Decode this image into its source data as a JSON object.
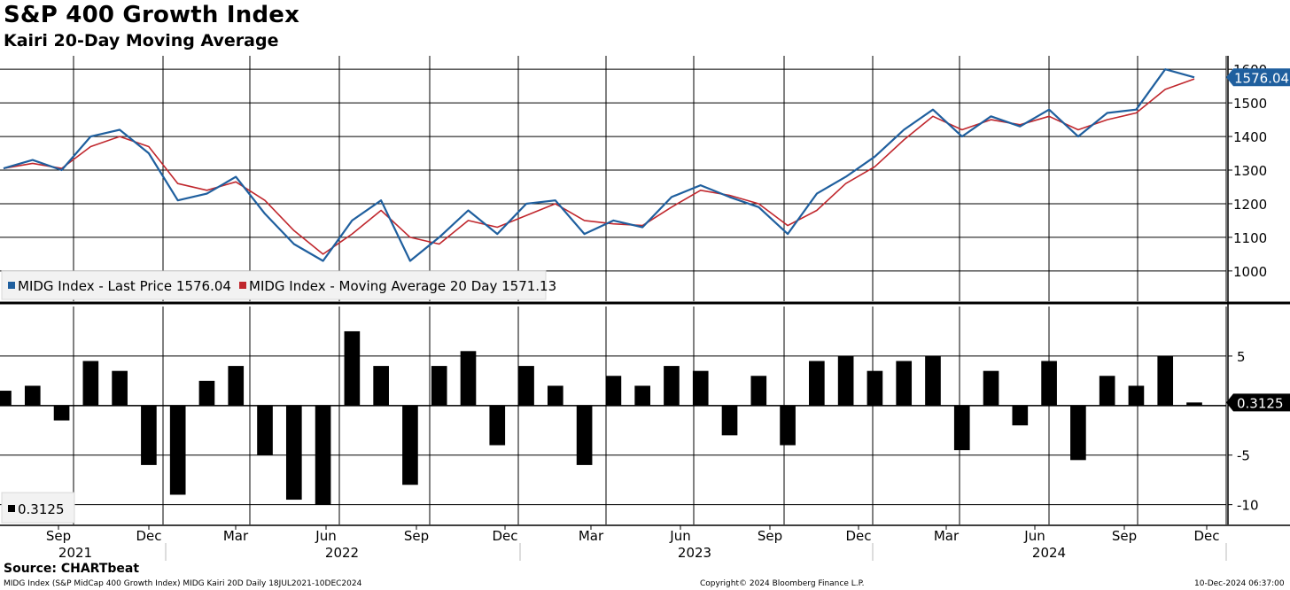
{
  "header": {
    "title": "S&P 400 Growth Index",
    "subtitle": "Kairi 20-Day Moving Average"
  },
  "footer": {
    "source": "Source: CHARTbeat",
    "description": "MIDG Index (S&P MidCap 400 Growth Index) MIDG Kairi 20D  Daily 18JUL2021-10DEC2024",
    "copyright": "Copyright© 2024 Bloomberg Finance L.P.",
    "timestamp": "10-Dec-2024 06:37:00"
  },
  "colors": {
    "price": "#1f5f9e",
    "moving_average": "#c0272d",
    "kairi": "#000000",
    "last_tag_background": "#1f5f9e"
  },
  "chart_data": [
    {
      "type": "line",
      "ylim": [
        910,
        1640
      ],
      "yticks": [
        1000,
        1100,
        1200,
        1300,
        1400,
        1500,
        1600
      ],
      "grid": true,
      "legend": "bottom-left",
      "last_value_label": "1576.04",
      "x": [
        "Jul 2021",
        "Aug 2021",
        "Sep 2021",
        "Oct 2021",
        "Nov 2021",
        "Dec 2021",
        "Jan 2022",
        "Feb 2022",
        "Mar 2022",
        "Apr 2022",
        "May 2022",
        "Jun 2022",
        "Jul 2022",
        "Aug 2022",
        "Sep 2022",
        "Oct 2022",
        "Nov 2022",
        "Dec 2022",
        "Jan 2023",
        "Feb 2023",
        "Mar 2023",
        "Apr 2023",
        "May 2023",
        "Jun 2023",
        "Jul 2023",
        "Aug 2023",
        "Sep 2023",
        "Oct 2023",
        "Nov 2023",
        "Dec 2023",
        "Jan 2024",
        "Feb 2024",
        "Mar 2024",
        "Apr 2024",
        "May 2024",
        "Jun 2024",
        "Jul 2024",
        "Aug 2024",
        "Sep 2024",
        "Oct 2024",
        "Nov 2024",
        "Dec 2024"
      ],
      "series": [
        {
          "name": "MIDG Index - Last Price 1576.04",
          "values": [
            1305,
            1330,
            1300,
            1400,
            1420,
            1350,
            1210,
            1230,
            1280,
            1170,
            1080,
            1030,
            1150,
            1210,
            1030,
            1100,
            1180,
            1110,
            1200,
            1210,
            1110,
            1150,
            1130,
            1220,
            1255,
            1220,
            1190,
            1110,
            1230,
            1280,
            1340,
            1420,
            1480,
            1400,
            1460,
            1430,
            1480,
            1400,
            1470,
            1480,
            1600,
            1576.04
          ]
        },
        {
          "name": "MIDG Index - Moving Average 20 Day 1571.13",
          "values": [
            1305,
            1320,
            1305,
            1370,
            1400,
            1370,
            1260,
            1240,
            1265,
            1210,
            1120,
            1050,
            1110,
            1180,
            1100,
            1080,
            1150,
            1130,
            1165,
            1200,
            1150,
            1140,
            1135,
            1190,
            1240,
            1225,
            1200,
            1135,
            1180,
            1260,
            1310,
            1390,
            1460,
            1420,
            1450,
            1435,
            1460,
            1420,
            1450,
            1470,
            1540,
            1571.13
          ]
        }
      ]
    },
    {
      "type": "bar",
      "ylim": [
        -12,
        10
      ],
      "yticks": [
        5,
        0,
        -5,
        -10
      ],
      "ytick_labels": [
        "5",
        "",
        "-5",
        "-10"
      ],
      "zero_line": true,
      "grid": true,
      "legend": "bottom-left",
      "last_value_label": "0.3125",
      "x": [
        "Jul 2021",
        "Aug 2021",
        "Sep 2021",
        "Oct 2021",
        "Nov 2021",
        "Dec 2021",
        "Jan 2022",
        "Feb 2022",
        "Mar 2022",
        "Apr 2022",
        "May 2022",
        "Jun 2022",
        "Jul 2022",
        "Aug 2022",
        "Sep 2022",
        "Oct 2022",
        "Nov 2022",
        "Dec 2022",
        "Jan 2023",
        "Feb 2023",
        "Mar 2023",
        "Apr 2023",
        "May 2023",
        "Jun 2023",
        "Jul 2023",
        "Aug 2023",
        "Sep 2023",
        "Oct 2023",
        "Nov 2023",
        "Dec 2023",
        "Jan 2024",
        "Feb 2024",
        "Mar 2024",
        "Apr 2024",
        "May 2024",
        "Jun 2024",
        "Jul 2024",
        "Aug 2024",
        "Sep 2024",
        "Oct 2024",
        "Nov 2024",
        "Dec 2024"
      ],
      "series": [
        {
          "name": "0.3125",
          "values": [
            1.5,
            2,
            -1.5,
            4.5,
            3.5,
            -6,
            -9,
            2.5,
            4,
            -5,
            -9.5,
            -10,
            7.5,
            4,
            -8,
            4,
            5.5,
            -4,
            4,
            2,
            -6,
            3,
            2,
            4,
            3.5,
            -3,
            3,
            -4,
            4.5,
            5,
            3.5,
            4.5,
            5,
            -4.5,
            3.5,
            -2,
            4.5,
            -5.5,
            3,
            2,
            5,
            0.3125
          ]
        }
      ]
    }
  ],
  "x_axis": {
    "month_labels": [
      "Sep",
      "Dec",
      "Mar",
      "Jun",
      "Sep",
      "Dec",
      "Mar",
      "Jun",
      "Sep",
      "Dec",
      "Mar",
      "Jun",
      "Sep",
      "Dec"
    ],
    "year_labels": [
      "2021",
      "2022",
      "2023",
      "2024"
    ]
  }
}
